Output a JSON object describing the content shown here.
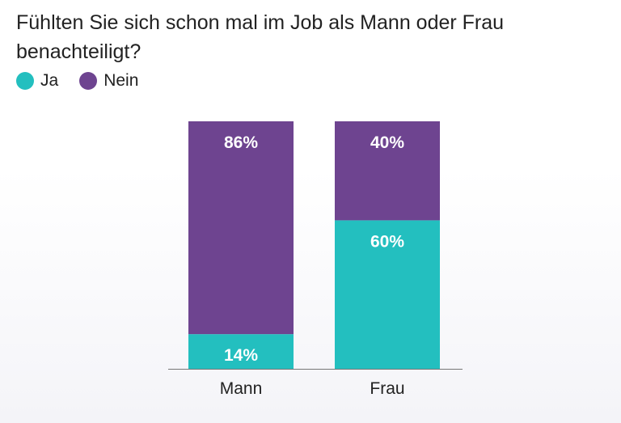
{
  "chart_data": {
    "type": "bar",
    "stacked": true,
    "title": "Fühlten Sie sich schon mal im Job als Mann oder Frau benachteiligt?",
    "categories": [
      "Mann",
      "Frau"
    ],
    "series": [
      {
        "name": "Ja",
        "color": "#23bfbf",
        "values": [
          14,
          60
        ],
        "labels": [
          "14%",
          "60%"
        ]
      },
      {
        "name": "Nein",
        "color": "#6e4490",
        "values": [
          86,
          40
        ],
        "labels": [
          "86%",
          "40%"
        ]
      }
    ],
    "ylim": [
      0,
      100
    ],
    "legend": "top-left",
    "grid": false
  }
}
